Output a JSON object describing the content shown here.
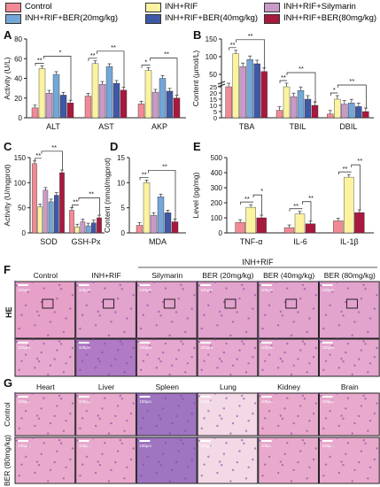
{
  "legend": [
    {
      "label": "Control",
      "color": "#f08a94"
    },
    {
      "label": "INH+RIF",
      "color": "#fbf3a0"
    },
    {
      "label": "INH+RIF+Silymarin",
      "color": "#c99ac6"
    },
    {
      "label": "INH+RIF+BER(20mg/kg)",
      "color": "#74a6d8"
    },
    {
      "label": "INH+RIF+BER(40mg/kg)",
      "color": "#3f58a6"
    },
    {
      "label": "INH+RIF+BER(80mg/kg)",
      "color": "#a8193e"
    }
  ],
  "colors": {
    "control": "#f08a94",
    "inh": "#fbf3a0",
    "sily": "#c99ac6",
    "ber20": "#74a6d8",
    "ber40": "#3f58a6",
    "ber80": "#a8193e",
    "tissue_pink": "#e9a9cc",
    "tissue_purple": "#9f74c0",
    "border": "#222222"
  },
  "chart_data": [
    {
      "panel": "A",
      "type": "bar",
      "ylabel": "Activity (U/L)",
      "ylim": [
        0,
        80
      ],
      "yticks": [
        0,
        20,
        40,
        60,
        80
      ],
      "categories": [
        "ALT",
        "AST",
        "AKP"
      ],
      "series": [
        {
          "name": "Control",
          "values": [
            10,
            22,
            14
          ]
        },
        {
          "name": "INH+RIF",
          "values": [
            50,
            55,
            48
          ]
        },
        {
          "name": "INH+RIF+Silymarin",
          "values": [
            25,
            34,
            26
          ]
        },
        {
          "name": "INH+RIF+BER(20mg/kg)",
          "values": [
            44,
            52,
            40
          ]
        },
        {
          "name": "INH+RIF+BER(40mg/kg)",
          "values": [
            23,
            35,
            27
          ]
        },
        {
          "name": "INH+RIF+BER(80mg/kg)",
          "values": [
            15,
            28,
            20
          ]
        }
      ],
      "significance": [
        "**",
        "*",
        "**",
        "**",
        "*",
        "**",
        "**",
        "**",
        "**"
      ]
    },
    {
      "panel": "B",
      "type": "bar",
      "ylabel": "Content (μmol/L)",
      "broken_axis": true,
      "yticks_upper": [
        50,
        100,
        150
      ],
      "yticks_lower": [
        0,
        5,
        10,
        15,
        20,
        25
      ],
      "categories": [
        "TBA",
        "TBIL",
        "DBIL"
      ],
      "series": [
        {
          "name": "Control",
          "values": [
            25,
            6,
            3
          ]
        },
        {
          "name": "INH+RIF",
          "values": [
            108,
            25,
            15
          ]
        },
        {
          "name": "INH+RIF+Silymarin",
          "values": [
            72,
            17,
            11
          ]
        },
        {
          "name": "INH+RIF+BER(20mg/kg)",
          "values": [
            92,
            22,
            12
          ]
        },
        {
          "name": "INH+RIF+BER(40mg/kg)",
          "values": [
            80,
            15,
            9
          ]
        },
        {
          "name": "INH+RIF+BER(80mg/kg)",
          "values": [
            58,
            10,
            5
          ]
        }
      ],
      "significance": [
        "**",
        "**",
        "**",
        "**",
        "*",
        "**",
        "**",
        "**",
        "*",
        "**"
      ]
    },
    {
      "panel": "C",
      "type": "bar",
      "ylabel": "Activity (U/mgprot)",
      "ylim": [
        0,
        150
      ],
      "yticks": [
        0,
        50,
        100,
        150
      ],
      "categories": [
        "SOD",
        "GSH-Px"
      ],
      "series": [
        {
          "name": "Control",
          "values": [
            138,
            45
          ]
        },
        {
          "name": "INH+RIF",
          "values": [
            52,
            12
          ]
        },
        {
          "name": "INH+RIF+Silymarin",
          "values": [
            85,
            22
          ]
        },
        {
          "name": "INH+RIF+BER(20mg/kg)",
          "values": [
            62,
            14
          ]
        },
        {
          "name": "INH+RIF+BER(40mg/kg)",
          "values": [
            75,
            20
          ]
        },
        {
          "name": "INH+RIF+BER(80mg/kg)",
          "values": [
            120,
            30
          ]
        }
      ],
      "significance": [
        "**",
        "**",
        "**",
        "**",
        "**",
        "**"
      ]
    },
    {
      "panel": "D",
      "type": "bar",
      "ylabel": "Content (nmol/mgprot)",
      "ylim": [
        0,
        15
      ],
      "yticks": [
        0,
        5,
        10,
        15
      ],
      "categories": [
        "MDA"
      ],
      "series": [
        {
          "name": "Control",
          "values": [
            1.5
          ]
        },
        {
          "name": "INH+RIF",
          "values": [
            10
          ]
        },
        {
          "name": "INH+RIF+Silymarin",
          "values": [
            3.5
          ]
        },
        {
          "name": "INH+RIF+BER(20mg/kg)",
          "values": [
            7.2
          ]
        },
        {
          "name": "INH+RIF+BER(40mg/kg)",
          "values": [
            4
          ]
        },
        {
          "name": "INH+RIF+BER(80mg/kg)",
          "values": [
            2.2
          ]
        }
      ],
      "significance": [
        "**",
        "**",
        "**",
        "**"
      ]
    },
    {
      "panel": "E",
      "type": "bar",
      "ylabel": "Level (pg/mg)",
      "ylim": [
        0,
        500
      ],
      "yticks": [
        0,
        100,
        200,
        300,
        400,
        500
      ],
      "categories": [
        "TNF-α",
        "IL-6",
        "IL-1β"
      ],
      "series": [
        {
          "name": "Control",
          "values": [
            70,
            35,
            80
          ]
        },
        {
          "name": "INH+RIF",
          "values": [
            170,
            125,
            370
          ]
        },
        {
          "name": "INH+RIF+BER(80mg/kg)",
          "values": [
            100,
            60,
            135
          ]
        }
      ],
      "significance": [
        "**",
        "*",
        "**",
        "**",
        "**",
        "**"
      ]
    }
  ],
  "panel_f": {
    "letter": "F",
    "row_label": "HE",
    "group_label": "INH+RIF",
    "columns": [
      "Control",
      "INH+RIF",
      "Silymarin",
      "BER (20mg/kg)",
      "BER (40mg/kg)",
      "BER (80mg/kg)"
    ],
    "scale": "100μm"
  },
  "panel_g": {
    "letter": "G",
    "columns": [
      "Heart",
      "Liver",
      "Spleen",
      "Lung",
      "Kidney",
      "Brain"
    ],
    "rows": [
      "Control",
      "BER (80mg/kg)"
    ],
    "scale": "100μm"
  }
}
